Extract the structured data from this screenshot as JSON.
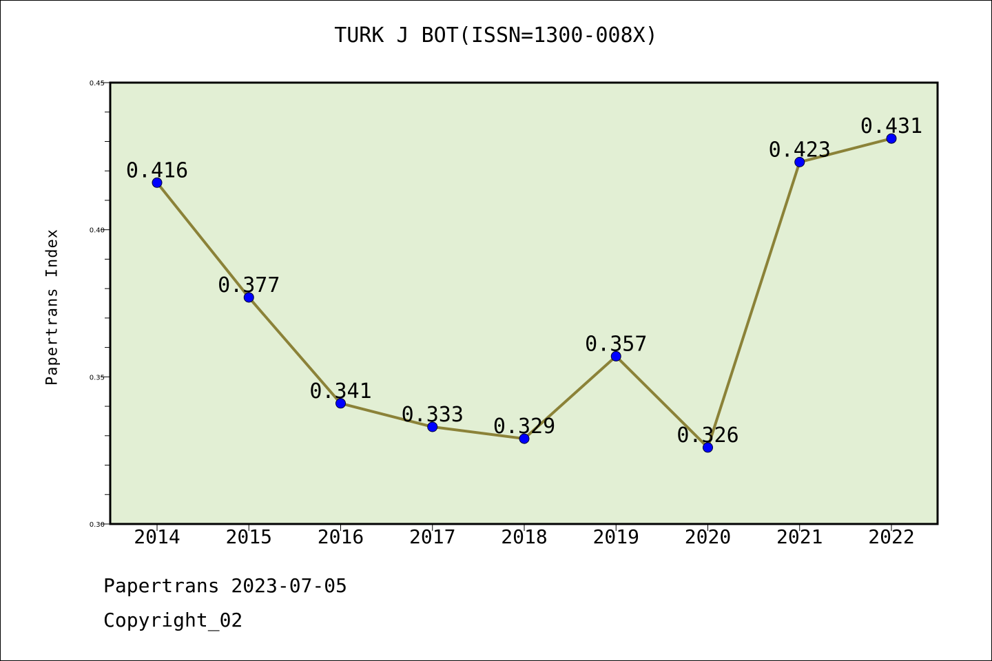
{
  "chart_data": {
    "type": "line",
    "title": "TURK J BOT(ISSN=1300-008X)",
    "xlabel": "",
    "ylabel": "Papertrans Index",
    "categories": [
      "2014",
      "2015",
      "2016",
      "2017",
      "2018",
      "2019",
      "2020",
      "2021",
      "2022"
    ],
    "series": [
      {
        "values": [
          0.416,
          0.377,
          0.341,
          0.333,
          0.329,
          0.357,
          0.326,
          0.423,
          0.431
        ],
        "labels": [
          "0.416",
          "0.377",
          "0.341",
          "0.333",
          "0.329",
          "0.357",
          "0.326",
          "0.423",
          "0.431"
        ]
      }
    ],
    "ylim": [
      0.3,
      0.45
    ],
    "yticks": [
      "0.30",
      "0.35",
      "0.40",
      "0.45"
    ],
    "grid": false,
    "colors": {
      "plot_background": "#e2efd4",
      "line": "#8b8238",
      "marker": "#0000ff",
      "axes": "#000000"
    }
  },
  "footer": {
    "date_text": "Papertrans 2023-07-05",
    "copyright_text": "Copyright_02"
  }
}
